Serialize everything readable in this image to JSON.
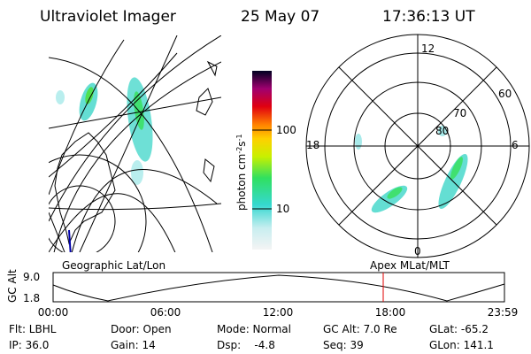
{
  "header": {
    "instrument": "Ultraviolet Imager",
    "date": "25 May 07",
    "time": "17:36:13 UT"
  },
  "colorbar": {
    "label": {
      "base": "photon cm",
      "exp1": "-2",
      "unit2": "s",
      "exp2": "-1"
    },
    "ticks": [
      "100",
      "10"
    ]
  },
  "polar": {
    "mlt_labels": {
      "top": "12",
      "left": "18",
      "right": "6",
      "bottom": "0"
    },
    "lat_labels": [
      "60",
      "70",
      "80"
    ]
  },
  "strip": {
    "left_title": "Geographic Lat/Lon",
    "right_title": "Apex MLat/MLT",
    "axis_label": "GC Alt",
    "yticks": [
      "9.0",
      "1.8"
    ],
    "xticks": [
      "00:00",
      "06:00",
      "12:00",
      "18:00",
      "23:59"
    ]
  },
  "status": {
    "rows": [
      [
        "Flt: LBHL",
        "Door: Open",
        "Mode: Normal",
        "GC Alt: 7.0 Re",
        "GLat: -65.2"
      ],
      [
        "IP: 36.0",
        "Gain: 14",
        "Dsp:    -4.8",
        "Seq: 39",
        "GLon: 141.1"
      ]
    ]
  }
}
